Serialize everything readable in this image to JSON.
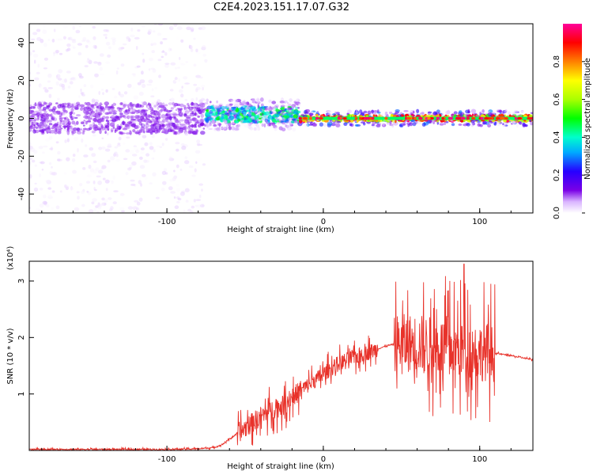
{
  "title": "C2E4.2023.151.17.07.G32",
  "chart_data": [
    {
      "type": "heatmap",
      "xlabel": "Height of straight line (km)",
      "ylabel": "Frequency (Hz)",
      "xlim": [
        -188,
        134
      ],
      "ylim": [
        -50,
        50
      ],
      "xticks": [
        -100,
        0,
        100
      ],
      "yticks": [
        -40,
        -20,
        0,
        20,
        40
      ],
      "colorbar": {
        "label": "Normalized spectral amplitude",
        "range": [
          0,
          1
        ],
        "ticks": [
          "0.0",
          "0.2",
          "0.4",
          "0.6",
          "0.8"
        ],
        "colormap": [
          "#ffffff",
          "#d9b3ff",
          "#7a00e6",
          "#2600ff",
          "#00aaff",
          "#00ffcc",
          "#00ff00",
          "#aaff00",
          "#ffff00",
          "#ff8000",
          "#ff0000",
          "#ff0099"
        ]
      },
      "description_segments": [
        {
          "x_range": [
            -188,
            -75
          ],
          "center_hz": 0,
          "core_width_hz": 8,
          "spread_hz": 50,
          "peak_amplitude": 0.2
        },
        {
          "x_range": [
            -75,
            -15
          ],
          "center_hz": 2,
          "core_width_hz": 4,
          "spread_hz": 8,
          "peak_amplitude": 0.55
        },
        {
          "x_range": [
            -15,
            134
          ],
          "center_hz": 0,
          "core_width_hz": 1.5,
          "spread_hz": 4,
          "peak_amplitude": 1.0
        }
      ]
    },
    {
      "type": "line",
      "xlabel": "Height of straight line (km)",
      "ylabel": "SNR (10 * v/v)",
      "y_multiplier": "(x10⁴)",
      "xlim": [
        -188,
        134
      ],
      "ylim": [
        0,
        3.35
      ],
      "xticks": [
        -100,
        0,
        100
      ],
      "yticks": [
        1,
        2,
        3
      ],
      "color": "#e8322a",
      "series": [
        {
          "points": [
            [
              -188,
              0.02
            ],
            [
              -150,
              0.02
            ],
            [
              -100,
              0.02
            ],
            [
              -80,
              0.03
            ],
            [
              -70,
              0.05
            ],
            [
              -65,
              0.1
            ],
            [
              -60,
              0.2
            ],
            [
              -55,
              0.3
            ],
            [
              -50,
              0.4
            ],
            [
              -45,
              0.5
            ],
            [
              -40,
              0.6
            ],
            [
              -35,
              0.7
            ],
            [
              -30,
              0.75
            ],
            [
              -25,
              0.8
            ],
            [
              -20,
              0.95
            ],
            [
              -15,
              1.05
            ],
            [
              -10,
              1.15
            ],
            [
              -5,
              1.25
            ],
            [
              0,
              1.35
            ],
            [
              5,
              1.45
            ],
            [
              10,
              1.55
            ],
            [
              15,
              1.6
            ],
            [
              20,
              1.65
            ],
            [
              25,
              1.7
            ],
            [
              30,
              1.75
            ],
            [
              35,
              1.8
            ],
            [
              40,
              1.85
            ],
            [
              45,
              1.88
            ],
            [
              50,
              1.9
            ],
            [
              55,
              1.9
            ],
            [
              60,
              1.9
            ],
            [
              70,
              1.85
            ],
            [
              80,
              1.8
            ],
            [
              90,
              1.78
            ],
            [
              100,
              1.75
            ],
            [
              105,
              1.75
            ],
            [
              110,
              1.72
            ],
            [
              115,
              1.7
            ],
            [
              120,
              1.68
            ],
            [
              125,
              1.65
            ],
            [
              130,
              1.63
            ],
            [
              134,
              1.6
            ]
          ],
          "noise": [
            {
              "x_range": [
                -55,
                -15
              ],
              "amplitude": 0.45
            },
            {
              "x_range": [
                -15,
                35
              ],
              "amplitude": 0.35
            },
            {
              "x_range": [
                45,
                110
              ],
              "amplitude": 1.3
            }
          ],
          "peak": {
            "x": 90,
            "y": 3.3
          }
        }
      ]
    }
  ]
}
